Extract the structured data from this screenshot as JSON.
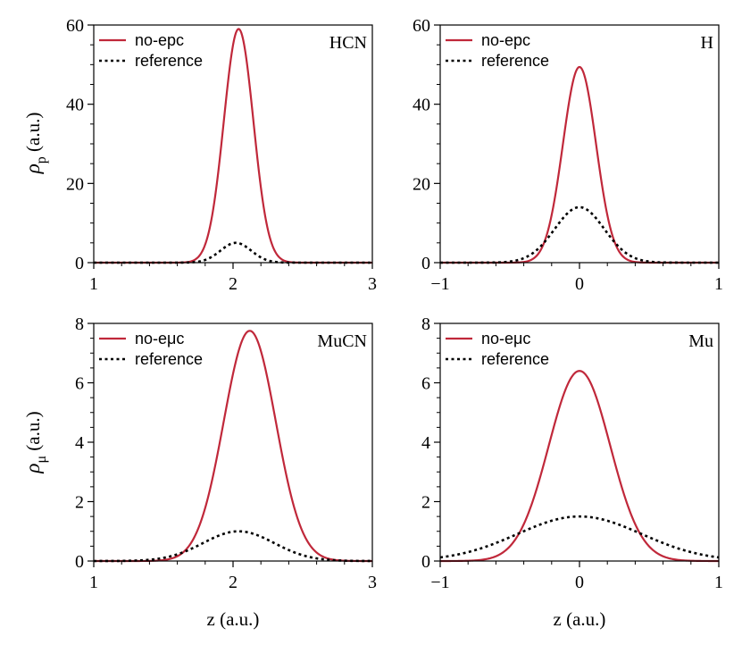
{
  "figure": {
    "xlabel": "z (a.u.)",
    "ylabel_top": "ρp (a.u.)",
    "ylabel_bottom": "ρμ (a.u.)"
  },
  "colors": {
    "method": "#c0283a",
    "reference": "#000000"
  },
  "chart_data": [
    {
      "type": "line",
      "panel": "top-left",
      "annotation": "HCN",
      "xlim": [
        1,
        3
      ],
      "ylim": [
        0,
        60
      ],
      "xticks": [
        1,
        2,
        3
      ],
      "yticks": [
        0,
        20,
        40,
        60
      ],
      "legend_placement": "top-left",
      "series": [
        {
          "name": "no-epc",
          "style": "solid",
          "peak_x": 2.04,
          "peak_y": 59,
          "fwhm": 0.25
        },
        {
          "name": "reference",
          "style": "dotted",
          "peak_x": 2.02,
          "peak_y": 5,
          "fwhm": 0.26
        }
      ]
    },
    {
      "type": "line",
      "panel": "top-right",
      "annotation": "H",
      "xlim": [
        -1,
        1
      ],
      "ylim": [
        0,
        60
      ],
      "xticks": [
        -1,
        0,
        1
      ],
      "yticks": [
        0,
        20,
        40,
        60
      ],
      "legend_placement": "top-left",
      "series": [
        {
          "name": "no-epc",
          "style": "solid",
          "peak_x": 0,
          "peak_y": 49.4,
          "fwhm": 0.28
        },
        {
          "name": "reference",
          "style": "dotted",
          "peak_x": 0,
          "peak_y": 14,
          "fwhm": 0.42
        }
      ]
    },
    {
      "type": "line",
      "panel": "bottom-left",
      "annotation": "MuCN",
      "xlim": [
        1,
        3
      ],
      "ylim": [
        0,
        8
      ],
      "xticks": [
        1,
        2,
        3
      ],
      "yticks": [
        0,
        2,
        4,
        6,
        8
      ],
      "legend_placement": "top-left",
      "series": [
        {
          "name": "no-eμc",
          "style": "solid",
          "peak_x": 2.12,
          "peak_y": 7.75,
          "fwhm": 0.44
        },
        {
          "name": "reference",
          "style": "dotted",
          "peak_x": 2.04,
          "peak_y": 1.0,
          "fwhm": 0.6
        }
      ]
    },
    {
      "type": "line",
      "panel": "bottom-right",
      "annotation": "Mu",
      "xlim": [
        -1,
        1
      ],
      "ylim": [
        0,
        8
      ],
      "xticks": [
        -1,
        0,
        1
      ],
      "yticks": [
        0,
        2,
        4,
        6,
        8
      ],
      "legend_placement": "top-left",
      "series": [
        {
          "name": "no-eμc",
          "style": "solid",
          "peak_x": 0,
          "peak_y": 6.4,
          "fwhm": 0.52
        },
        {
          "name": "reference",
          "style": "dotted",
          "peak_x": 0,
          "peak_y": 1.5,
          "fwhm": 1.05
        }
      ]
    }
  ]
}
